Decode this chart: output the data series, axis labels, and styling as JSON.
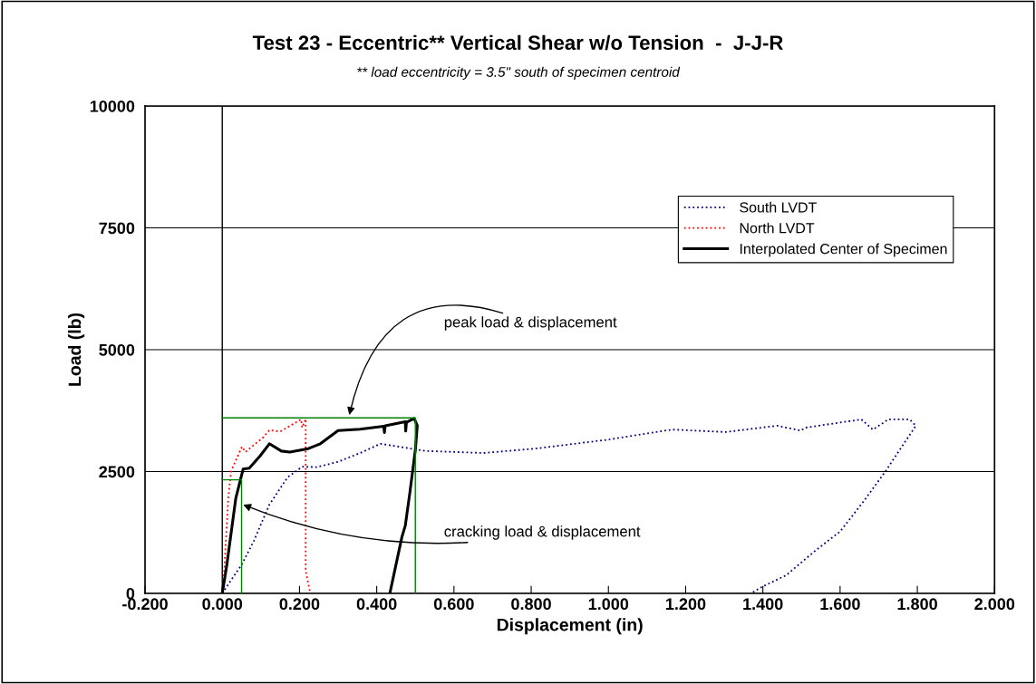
{
  "chart_data": {
    "type": "line",
    "title": "Test 23 - Eccentric** Vertical Shear w/o Tension  -  J-J-R",
    "subtitle": "** load eccentricity = 3.5\" south of specimen centroid",
    "xlabel": "Displacement (in)",
    "ylabel": "Load (lb)",
    "xlim": [
      -0.2,
      2.0
    ],
    "ylim": [
      0,
      10000
    ],
    "xticks": [
      {
        "value": -0.2,
        "label": "-0.200"
      },
      {
        "value": 0.0,
        "label": "0.000"
      },
      {
        "value": 0.2,
        "label": "0.200"
      },
      {
        "value": 0.4,
        "label": "0.400"
      },
      {
        "value": 0.6,
        "label": "0.600"
      },
      {
        "value": 0.8,
        "label": "0.800"
      },
      {
        "value": 1.0,
        "label": "1.000"
      },
      {
        "value": 1.2,
        "label": "1.200"
      },
      {
        "value": 1.4,
        "label": "1.400"
      },
      {
        "value": 1.6,
        "label": "1.600"
      },
      {
        "value": 1.8,
        "label": "1.800"
      },
      {
        "value": 2.0,
        "label": "2.000"
      }
    ],
    "yticks": [
      0,
      2500,
      5000,
      7500,
      10000
    ],
    "grid": "y",
    "legend": "top right",
    "marker": "none",
    "series": [
      {
        "name": "South LVDT",
        "color": "#000080",
        "line_style": "dotted",
        "x": [
          0,
          0.051,
          0.082,
          0.122,
          0.169,
          0.207,
          0.245,
          0.3,
          0.357,
          0.41,
          0.466,
          0.528,
          0.535,
          0.676,
          0.81,
          1.005,
          1.146,
          1.17,
          1.303,
          1.437,
          1.498,
          1.51,
          1.655,
          1.685,
          1.725,
          1.78,
          1.796,
          1.718,
          1.662,
          1.6,
          1.538,
          1.46,
          1.397,
          1.369
        ],
        "values": [
          0,
          600,
          1080,
          1820,
          2380,
          2600,
          2590,
          2700,
          2880,
          3070,
          3000,
          2920,
          2920,
          2880,
          2970,
          3160,
          3340,
          3360,
          3310,
          3440,
          3340,
          3400,
          3570,
          3360,
          3570,
          3570,
          3440,
          2510,
          1900,
          1270,
          890,
          370,
          130,
          0
        ]
      },
      {
        "name": "North LVDT",
        "color": "#ff0000",
        "line_style": "dotted",
        "x": [
          0,
          0.005,
          0.016,
          0.023,
          0.051,
          0.06,
          0.075,
          0.106,
          0.122,
          0.15,
          0.176,
          0.204,
          0.207,
          0.216,
          0.216,
          0.216,
          0.228
        ],
        "values": [
          0,
          460,
          2010,
          2510,
          3010,
          2900,
          3000,
          3200,
          3350,
          3320,
          3440,
          3570,
          3400,
          3580,
          2320,
          460,
          0
        ]
      },
      {
        "name": "Interpolated Center of Specimen",
        "color": "#000000",
        "line_style": "solid",
        "x": [
          0,
          0.012,
          0.035,
          0.047,
          0.054,
          0.07,
          0.098,
          0.122,
          0.153,
          0.175,
          0.223,
          0.254,
          0.3,
          0.357,
          0.418,
          0.42,
          0.422,
          0.474,
          0.475,
          0.477,
          0.497,
          0.505,
          0.5,
          0.486,
          0.474,
          0.465,
          0.434
        ],
        "values": [
          0,
          595,
          1950,
          2330,
          2550,
          2570,
          2820,
          3070,
          2920,
          2900,
          2970,
          3070,
          3340,
          3370,
          3430,
          3300,
          3440,
          3520,
          3330,
          3510,
          3590,
          3440,
          2940,
          2080,
          1390,
          1150,
          0
        ]
      },
      {
        "color": "#008000",
        "line_style": "solid",
        "x": [
          0,
          0.5,
          0.5
        ],
        "values": [
          3600,
          3600,
          0
        ]
      },
      {
        "color": "#008000",
        "line_style": "solid",
        "x": [
          0,
          0.05,
          0.05
        ],
        "values": [
          2330,
          2330,
          0
        ]
      }
    ],
    "annotations": [
      {
        "text": "peak load & displacement",
        "x": 0.329,
        "y": 3660
      },
      {
        "text": "cracking load & displacement",
        "x": 0.054,
        "y": 1820
      }
    ]
  }
}
